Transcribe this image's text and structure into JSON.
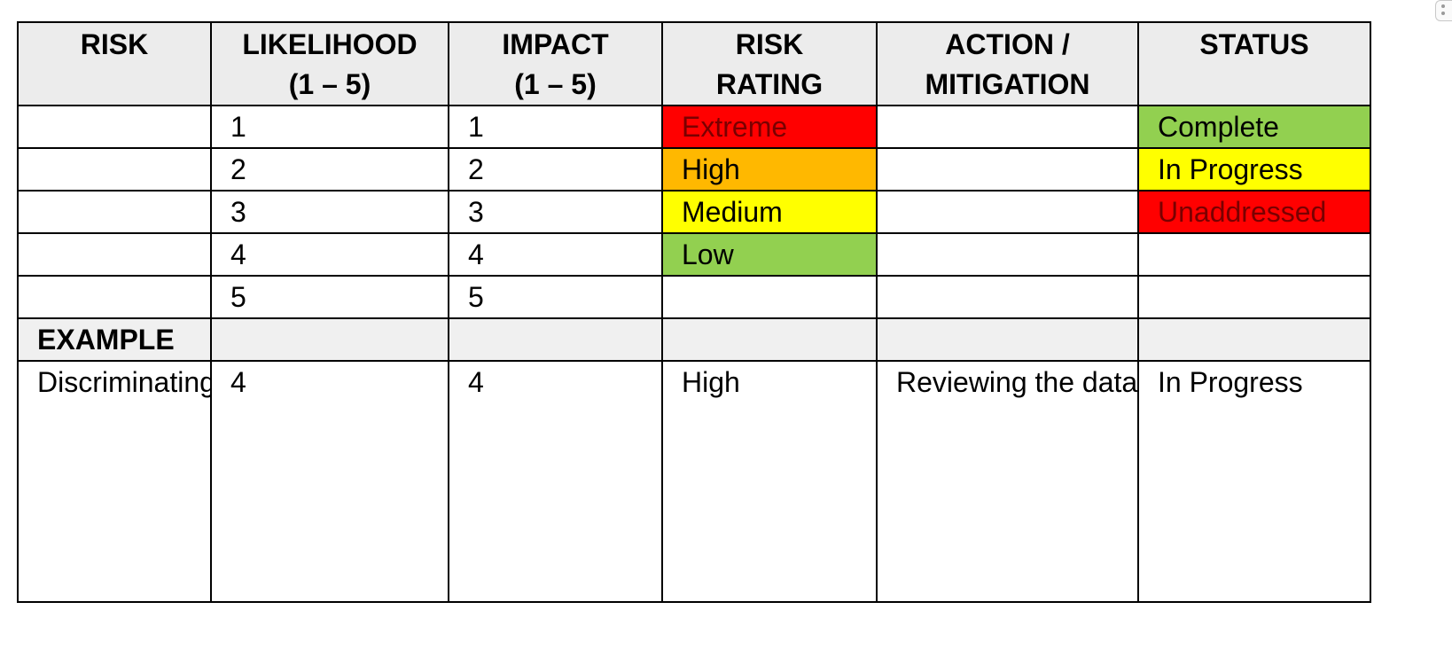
{
  "headers": [
    "RISK",
    "LIKELIHOOD\n(1 – 5)",
    "IMPACT\n(1 – 5)",
    "RISK\nRATING",
    "ACTION /\nMITIGATION",
    "STATUS"
  ],
  "scale_rows": [
    {
      "risk": "",
      "likelihood": "1",
      "impact": "1",
      "rating": "Extreme",
      "action": "",
      "status": "Complete"
    },
    {
      "risk": "",
      "likelihood": "2",
      "impact": "2",
      "rating": "High",
      "action": "",
      "status": "In Progress"
    },
    {
      "risk": "",
      "likelihood": "3",
      "impact": "3",
      "rating": "Medium",
      "action": "",
      "status": "Unaddressed"
    },
    {
      "risk": "",
      "likelihood": "4",
      "impact": "4",
      "rating": "Low",
      "action": "",
      "status": ""
    },
    {
      "risk": "",
      "likelihood": "5",
      "impact": "5",
      "rating": "",
      "action": "",
      "status": ""
    }
  ],
  "example_label": "EXAMPLE",
  "example_row": {
    "risk": "Discriminating on the basis of gender",
    "likelihood": "4",
    "impact": "4",
    "rating": "High",
    "action": "Reviewing the data and ensuring it holistically represents all data",
    "status": "In Progress"
  },
  "colors": {
    "extreme": "#ff0000",
    "high": "#ffb800",
    "medium": "#ffff00",
    "low": "#92d050",
    "complete": "#92d050",
    "in_progress": "#ffff00",
    "unaddressed": "#ff0000",
    "header_bg": "#ececec"
  }
}
